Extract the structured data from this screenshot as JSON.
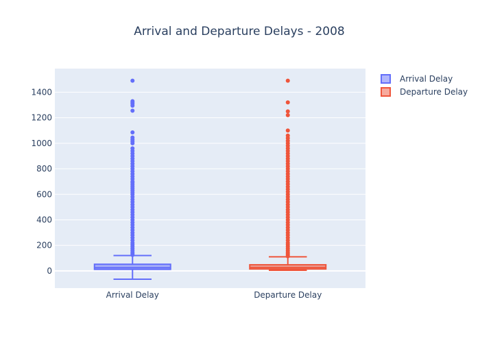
{
  "chart_data": {
    "type": "box",
    "title": "Arrival and Departure Delays - 2008",
    "xlabel": "",
    "ylabel": "",
    "ylim": [
      -135,
      1585
    ],
    "y_ticks": [
      0,
      200,
      400,
      600,
      800,
      1000,
      1200,
      1400
    ],
    "categories": [
      "Arrival Delay",
      "Departure Delay"
    ],
    "legend_placement": "top-right",
    "grid": true,
    "series": [
      {
        "name": "Arrival Delay",
        "category": "Arrival Delay",
        "color": "#636efa",
        "whisker_low": -65,
        "q1": 12,
        "median": 25,
        "q3": 52,
        "whisker_high": 120,
        "outliers": [
          125,
          135,
          145,
          160,
          175,
          190,
          205,
          220,
          240,
          260,
          280,
          300,
          320,
          340,
          360,
          380,
          400,
          420,
          440,
          460,
          480,
          500,
          520,
          540,
          560,
          580,
          600,
          615,
          630,
          645,
          660,
          675,
          690,
          700,
          720,
          740,
          760,
          780,
          800,
          820,
          840,
          860,
          880,
          900,
          920,
          940,
          960,
          1000,
          1015,
          1030,
          1045,
          1085,
          1255,
          1295,
          1310,
          1320,
          1330,
          1490
        ]
      },
      {
        "name": "Departure Delay",
        "category": "Departure Delay",
        "color": "#ef553b",
        "whisker_low": 5,
        "q1": 15,
        "median": 27,
        "q3": 48,
        "whisker_high": 110,
        "outliers": [
          115,
          125,
          135,
          145,
          160,
          175,
          190,
          205,
          220,
          240,
          260,
          280,
          300,
          320,
          340,
          360,
          380,
          400,
          420,
          440,
          460,
          480,
          500,
          520,
          540,
          560,
          580,
          600,
          620,
          640,
          660,
          680,
          700,
          720,
          740,
          760,
          780,
          800,
          820,
          840,
          860,
          880,
          900,
          920,
          940,
          960,
          980,
          1000,
          1020,
          1040,
          1060,
          1100,
          1220,
          1250,
          1320,
          1490
        ]
      }
    ]
  }
}
